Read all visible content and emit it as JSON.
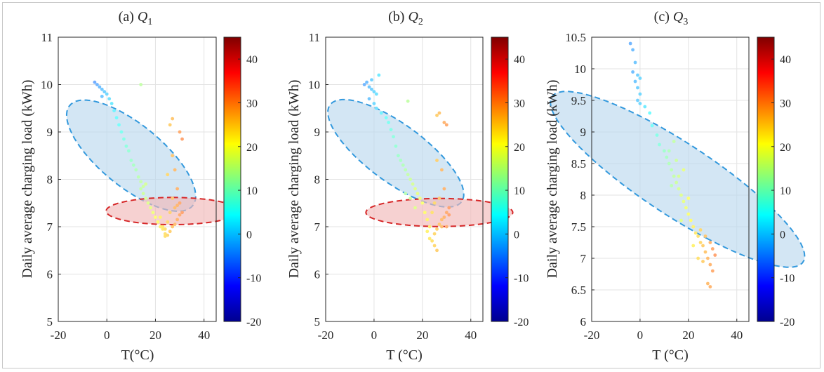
{
  "chart_data": [
    {
      "type": "scatter",
      "title": "(a) Q1",
      "title_prefix": "(a)",
      "title_var": "Q",
      "title_sub": "1",
      "xlabel": "T(°C)",
      "ylabel": "Daily average charging load (kWh)",
      "xlim": [
        -20,
        45
      ],
      "ylim": [
        5,
        11
      ],
      "xticks": [
        -20,
        0,
        20,
        40
      ],
      "yticks": [
        5,
        6,
        7,
        8,
        9,
        10,
        11
      ],
      "xtick_labels": [
        "-20",
        "0",
        "20",
        "40"
      ],
      "ytick_labels": [
        "5",
        "6",
        "7",
        "8",
        "9",
        "10",
        "11"
      ],
      "grid": true,
      "colorbar": {
        "range": [
          -20,
          45
        ],
        "ticks": [
          "-20",
          "-10",
          "0",
          "10",
          "20",
          "30",
          "40"
        ],
        "colormap": "jet"
      },
      "ellipses": [
        {
          "color": "#3399dd",
          "fill": "#bcd9ee",
          "cx": 10,
          "cy": 8.5,
          "a": 22.0,
          "b": 1.4,
          "angle_deg": -67
        },
        {
          "color": "#d62728",
          "fill": "#f1b9b9",
          "cx": 27,
          "cy": 7.33,
          "a": 5.6,
          "b": 1.4,
          "angle_deg": 90
        }
      ],
      "points": [
        [
          -5,
          10.05
        ],
        [
          -4,
          10.0
        ],
        [
          -3,
          9.95
        ],
        [
          -2,
          9.9
        ],
        [
          -1,
          9.85
        ],
        [
          0,
          9.8
        ],
        [
          -2,
          9.75
        ],
        [
          1,
          9.7
        ],
        [
          2,
          9.6
        ],
        [
          3,
          9.45
        ],
        [
          4,
          9.3
        ],
        [
          5,
          9.15
        ],
        [
          6,
          9.0
        ],
        [
          7,
          8.85
        ],
        [
          8,
          8.7
        ],
        [
          9,
          8.6
        ],
        [
          10,
          8.4
        ],
        [
          11,
          8.3
        ],
        [
          12,
          8.2
        ],
        [
          13,
          8.05
        ],
        [
          14,
          7.95
        ],
        [
          15,
          7.85
        ],
        [
          14,
          7.8
        ],
        [
          15,
          7.7
        ],
        [
          16,
          7.6
        ],
        [
          17,
          7.5
        ],
        [
          18,
          7.4
        ],
        [
          19,
          7.3
        ],
        [
          20,
          7.2
        ],
        [
          21,
          7.1
        ],
        [
          22,
          7.0
        ],
        [
          23,
          6.95
        ],
        [
          24,
          6.85
        ],
        [
          14,
          10.0
        ],
        [
          16,
          7.9
        ],
        [
          22,
          7.2
        ],
        [
          23,
          7.0
        ],
        [
          24,
          6.8
        ],
        [
          25,
          6.82
        ],
        [
          26,
          6.9
        ],
        [
          27,
          7.0
        ],
        [
          28,
          7.05
        ],
        [
          29,
          7.15
        ],
        [
          30,
          7.25
        ],
        [
          31,
          7.3
        ],
        [
          26,
          7.3
        ],
        [
          28,
          7.4
        ],
        [
          30,
          7.5
        ],
        [
          29,
          7.8
        ],
        [
          27,
          7.6
        ],
        [
          28,
          8.2
        ],
        [
          27,
          8.5
        ],
        [
          25,
          8.1
        ],
        [
          26,
          9.15
        ],
        [
          27,
          9.28
        ],
        [
          30,
          9.0
        ],
        [
          31,
          8.85
        ],
        [
          24,
          6.95
        ],
        [
          25,
          7.1
        ],
        [
          29,
          7.45
        ]
      ]
    },
    {
      "type": "scatter",
      "title": "(b) Q2",
      "title_prefix": "(b)",
      "title_var": "Q",
      "title_sub": "2",
      "xlabel": "T (°C)",
      "ylabel": "Daily average charging load (kWh)",
      "xlim": [
        -20,
        45
      ],
      "ylim": [
        5,
        11
      ],
      "xticks": [
        -20,
        0,
        20,
        40
      ],
      "yticks": [
        5,
        6,
        7,
        8,
        9,
        10,
        11
      ],
      "xtick_labels": [
        "-20",
        "0",
        "20",
        "40"
      ],
      "ytick_labels": [
        "5",
        "6",
        "7",
        "8",
        "9",
        "10",
        "11"
      ],
      "grid": true,
      "colorbar": {
        "range": [
          -20,
          45
        ],
        "ticks": [
          "-20",
          "-10",
          "0",
          "10",
          "20",
          "30",
          "40"
        ],
        "colormap": "jet"
      },
      "ellipses": [
        {
          "color": "#3399dd",
          "fill": "#bcd9ee",
          "cx": 9,
          "cy": 8.55,
          "a": 20.5,
          "b": 1.5,
          "angle_deg": -66
        },
        {
          "color": "#d62728",
          "fill": "#f1b9b9",
          "cx": 27,
          "cy": 7.3,
          "a": 5.8,
          "b": 1.55,
          "angle_deg": 90
        }
      ],
      "points": [
        [
          -4,
          10.0
        ],
        [
          -3,
          10.05
        ],
        [
          -2,
          9.95
        ],
        [
          -1,
          9.9
        ],
        [
          0,
          9.85
        ],
        [
          1,
          9.8
        ],
        [
          -2,
          9.7
        ],
        [
          0,
          9.6
        ],
        [
          2,
          10.2
        ],
        [
          -1,
          10.1
        ],
        [
          1,
          9.5
        ],
        [
          3,
          9.4
        ],
        [
          5,
          9.3
        ],
        [
          6,
          9.2
        ],
        [
          7,
          9.05
        ],
        [
          8,
          8.9
        ],
        [
          9,
          8.7
        ],
        [
          10,
          8.5
        ],
        [
          11,
          8.4
        ],
        [
          12,
          8.3
        ],
        [
          13,
          8.2
        ],
        [
          14,
          8.1
        ],
        [
          15,
          8.0
        ],
        [
          16,
          7.9
        ],
        [
          17,
          7.8
        ],
        [
          18,
          7.7
        ],
        [
          19,
          7.6
        ],
        [
          20,
          7.5
        ],
        [
          21,
          7.3
        ],
        [
          22,
          7.15
        ],
        [
          23,
          7.0
        ],
        [
          14,
          9.65
        ],
        [
          13,
          7.7
        ],
        [
          15,
          7.6
        ],
        [
          17,
          7.4
        ],
        [
          22,
          6.9
        ],
        [
          23,
          6.75
        ],
        [
          24,
          6.7
        ],
        [
          25,
          6.85
        ],
        [
          26,
          6.95
        ],
        [
          27,
          7.05
        ],
        [
          28,
          7.15
        ],
        [
          29,
          7.2
        ],
        [
          30,
          7.3
        ],
        [
          31,
          7.4
        ],
        [
          25,
          7.5
        ],
        [
          27,
          7.6
        ],
        [
          29,
          7.8
        ],
        [
          28,
          8.2
        ],
        [
          26,
          8.4
        ],
        [
          27,
          9.4
        ],
        [
          26,
          9.35
        ],
        [
          29,
          9.2
        ],
        [
          30,
          9.15
        ],
        [
          24,
          7.3
        ],
        [
          25,
          6.6
        ],
        [
          26,
          6.5
        ],
        [
          30,
          7.0
        ],
        [
          31,
          7.25
        ],
        [
          28,
          7.0
        ]
      ]
    },
    {
      "type": "scatter",
      "title": "(c) Q3",
      "title_prefix": "(c)",
      "title_var": "Q",
      "title_sub": "3",
      "xlabel": "T (°C)",
      "ylabel": "Daily average charging load (kWh)",
      "xlim": [
        -20,
        45
      ],
      "ylim": [
        6,
        10.5
      ],
      "xticks": [
        -20,
        0,
        20,
        40
      ],
      "yticks": [
        6,
        6.5,
        7,
        7.5,
        8,
        8.5,
        9,
        9.5,
        10,
        10.5
      ],
      "xtick_labels": [
        "-20",
        "0",
        "20",
        "40"
      ],
      "ytick_labels": [
        "6",
        "6.5",
        "7",
        "7.5",
        "8",
        "8.5",
        "9",
        "9.5",
        "10",
        "10.5"
      ],
      "grid": true,
      "colorbar": {
        "range": [
          -20,
          45
        ],
        "ticks": [
          "-20",
          "-10",
          "0",
          "10",
          "20",
          "30",
          "40"
        ],
        "colormap": "jet"
      },
      "ellipses": [
        {
          "color": "#3399dd",
          "fill": "#bcd9ee",
          "cx": 15.5,
          "cy": 8.25,
          "a": 28.0,
          "b": 2.2,
          "angle_deg": -62.5
        }
      ],
      "points": [
        [
          -4,
          10.4
        ],
        [
          -3,
          10.3
        ],
        [
          -2,
          10.1
        ],
        [
          -3,
          9.95
        ],
        [
          -1,
          9.9
        ],
        [
          0,
          9.85
        ],
        [
          -2,
          9.8
        ],
        [
          -1,
          9.7
        ],
        [
          0,
          9.6
        ],
        [
          -1,
          9.5
        ],
        [
          0,
          9.45
        ],
        [
          2,
          9.4
        ],
        [
          4,
          9.3
        ],
        [
          5,
          9.1
        ],
        [
          7,
          8.95
        ],
        [
          8,
          8.8
        ],
        [
          10,
          8.7
        ],
        [
          11,
          8.6
        ],
        [
          12,
          8.5
        ],
        [
          13,
          8.4
        ],
        [
          14,
          8.3
        ],
        [
          15,
          8.2
        ],
        [
          16,
          8.1
        ],
        [
          17,
          8.0
        ],
        [
          18,
          7.9
        ],
        [
          19,
          7.8
        ],
        [
          20,
          7.7
        ],
        [
          21,
          7.6
        ],
        [
          22,
          7.5
        ],
        [
          23,
          7.4
        ],
        [
          24,
          7.35
        ],
        [
          25,
          7.25
        ],
        [
          26,
          7.2
        ],
        [
          27,
          7.1
        ],
        [
          28,
          7.0
        ],
        [
          29,
          6.9
        ],
        [
          30,
          6.8
        ],
        [
          28,
          6.6
        ],
        [
          29,
          6.55
        ],
        [
          31,
          7.05
        ],
        [
          12,
          8.7
        ],
        [
          14,
          8.85
        ],
        [
          16,
          8.3
        ],
        [
          18,
          8.4
        ],
        [
          17,
          7.6
        ],
        [
          22,
          7.2
        ],
        [
          24,
          7.0
        ],
        [
          26,
          6.95
        ],
        [
          27,
          7.35
        ],
        [
          29,
          7.25
        ],
        [
          30,
          7.15
        ],
        [
          25,
          7.45
        ],
        [
          15,
          8.55
        ],
        [
          13,
          8.15
        ],
        [
          20,
          7.95
        ]
      ]
    }
  ]
}
